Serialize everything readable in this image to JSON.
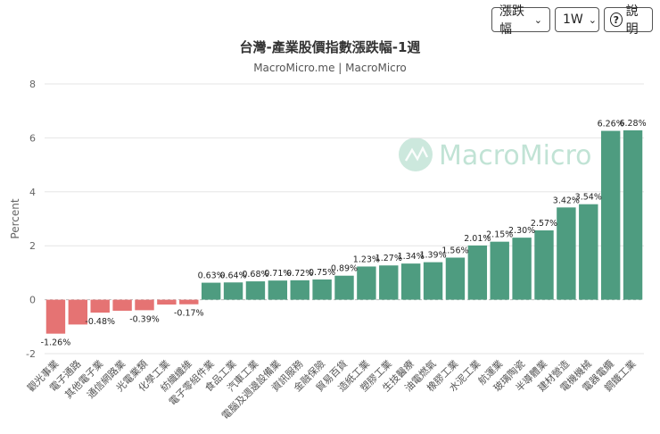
{
  "controls": {
    "metric": "漲跌幅",
    "period": "1W",
    "help": "說明"
  },
  "chart_data": {
    "type": "bar",
    "title": "台灣-產業股價指數漲跌幅-1週",
    "subtitle": "MacroMicro.me | MacroMicro",
    "watermark": "MacroMicro",
    "ylabel": "Percent",
    "xlabel": "",
    "ylim": [
      -2,
      8
    ],
    "yticks": [
      -2,
      0,
      2,
      4,
      6,
      8
    ],
    "value_suffix": "%",
    "colors": {
      "positive": "#4e9c80",
      "negative": "#e57373"
    },
    "categories": [
      "觀光事業",
      "電子通路",
      "其他電子業",
      "通信網路業",
      "光電業類",
      "化學工業",
      "紡織纖維",
      "電子零組件業",
      "食品工業",
      "汽車工業",
      "電腦及週邊設備業",
      "資訊服務",
      "金融保險",
      "貿易百貨",
      "造紙工業",
      "塑膠工業",
      "生技醫療",
      "油電燃氣",
      "橡膠工業",
      "水泥工業",
      "航運業",
      "玻璃陶瓷",
      "半導體業",
      "建材營造",
      "電機機械",
      "電器電纜",
      "鋼鐵工業"
    ],
    "values": [
      -1.26,
      -0.92,
      -0.48,
      -0.41,
      -0.39,
      -0.18,
      -0.17,
      0.63,
      0.64,
      0.68,
      0.71,
      0.72,
      0.75,
      0.89,
      1.23,
      1.27,
      1.34,
      1.39,
      1.56,
      2.01,
      2.15,
      2.3,
      2.57,
      3.42,
      3.54,
      6.26,
      6.28
    ],
    "labels": [
      "-1.26%",
      "",
      "-0.48%",
      "",
      "-0.39%",
      "",
      "-0.17%",
      "0.63%",
      "0.64%",
      "0.68%",
      "0.71%",
      "0.72%",
      "0.75%",
      "0.89%",
      "1.23%",
      "1.27%",
      "1.34%",
      "1.39%",
      "1.56%",
      "2.01%",
      "2.15%",
      "2.30%",
      "2.57%",
      "3.42%",
      "3.54%",
      "6.26%",
      "6.28%"
    ]
  }
}
